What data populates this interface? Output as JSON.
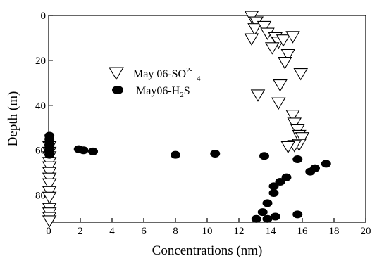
{
  "chart_data": {
    "type": "scatter",
    "xlabel": "Concentrations (nm)",
    "ylabel": "Depth (m)",
    "xlim": [
      0,
      20
    ],
    "ylim": [
      0,
      92
    ],
    "y_inverted": true,
    "x_axis_position": "bottom",
    "xticks": [
      0,
      2,
      4,
      6,
      8,
      10,
      12,
      14,
      16,
      18,
      20
    ],
    "yticks": [
      0,
      20,
      40,
      60,
      80
    ],
    "grid": false,
    "legend_position": "upper-middle-left",
    "series": [
      {
        "name": "May 06-SO",
        "name_superscript": "2-",
        "name_subscript": "4",
        "marker": "open-down-triangle",
        "points": [
          [
            12.8,
            0.5
          ],
          [
            13.1,
            3
          ],
          [
            13.0,
            6
          ],
          [
            13.6,
            5
          ],
          [
            13.8,
            8
          ],
          [
            12.8,
            10.5
          ],
          [
            14.3,
            10
          ],
          [
            14.5,
            12
          ],
          [
            14.8,
            11
          ],
          [
            15.4,
            9.5
          ],
          [
            14.1,
            14.5
          ],
          [
            15.1,
            17.5
          ],
          [
            14.9,
            21
          ],
          [
            15.9,
            26
          ],
          [
            14.6,
            31
          ],
          [
            13.2,
            35.5
          ],
          [
            14.5,
            39
          ],
          [
            15.4,
            44.5
          ],
          [
            15.5,
            48
          ],
          [
            15.7,
            51
          ],
          [
            15.8,
            53.5
          ],
          [
            15.9,
            55
          ],
          [
            16.0,
            54.5
          ],
          [
            15.8,
            57.5
          ],
          [
            15.5,
            58
          ],
          [
            15.1,
            58.5
          ],
          [
            0.05,
            58.5
          ],
          [
            0.05,
            61
          ],
          [
            0.05,
            63
          ],
          [
            0.05,
            65.5
          ],
          [
            0.05,
            67.5
          ],
          [
            0.05,
            70
          ],
          [
            0.05,
            72.5
          ],
          [
            0.05,
            75
          ],
          [
            0.05,
            78.5
          ],
          [
            0.05,
            81
          ],
          [
            0.05,
            86
          ],
          [
            0.05,
            88
          ],
          [
            0.05,
            90
          ],
          [
            0.05,
            91.5
          ]
        ]
      },
      {
        "name": "May06-H",
        "name_subscript": "2",
        "name_suffix": "S",
        "marker": "filled-circle",
        "points": [
          [
            0.05,
            53.5
          ],
          [
            0.05,
            55
          ],
          [
            0.05,
            56.5
          ],
          [
            0.05,
            58
          ],
          [
            0.05,
            59.5
          ],
          [
            0.05,
            61
          ],
          [
            0.05,
            62
          ],
          [
            1.9,
            59.5
          ],
          [
            2.2,
            60
          ],
          [
            2.8,
            60.5
          ],
          [
            8.0,
            62
          ],
          [
            10.5,
            61.5
          ],
          [
            13.6,
            62.5
          ],
          [
            15.7,
            64
          ],
          [
            17.5,
            66
          ],
          [
            16.8,
            68
          ],
          [
            16.5,
            69.5
          ],
          [
            15.0,
            72
          ],
          [
            14.6,
            74
          ],
          [
            14.2,
            76
          ],
          [
            14.2,
            79
          ],
          [
            13.8,
            83.5
          ],
          [
            13.5,
            87.5
          ],
          [
            15.7,
            88.5
          ],
          [
            14.3,
            89.5
          ],
          [
            13.1,
            90.5
          ],
          [
            13.8,
            90.5
          ]
        ]
      }
    ]
  }
}
